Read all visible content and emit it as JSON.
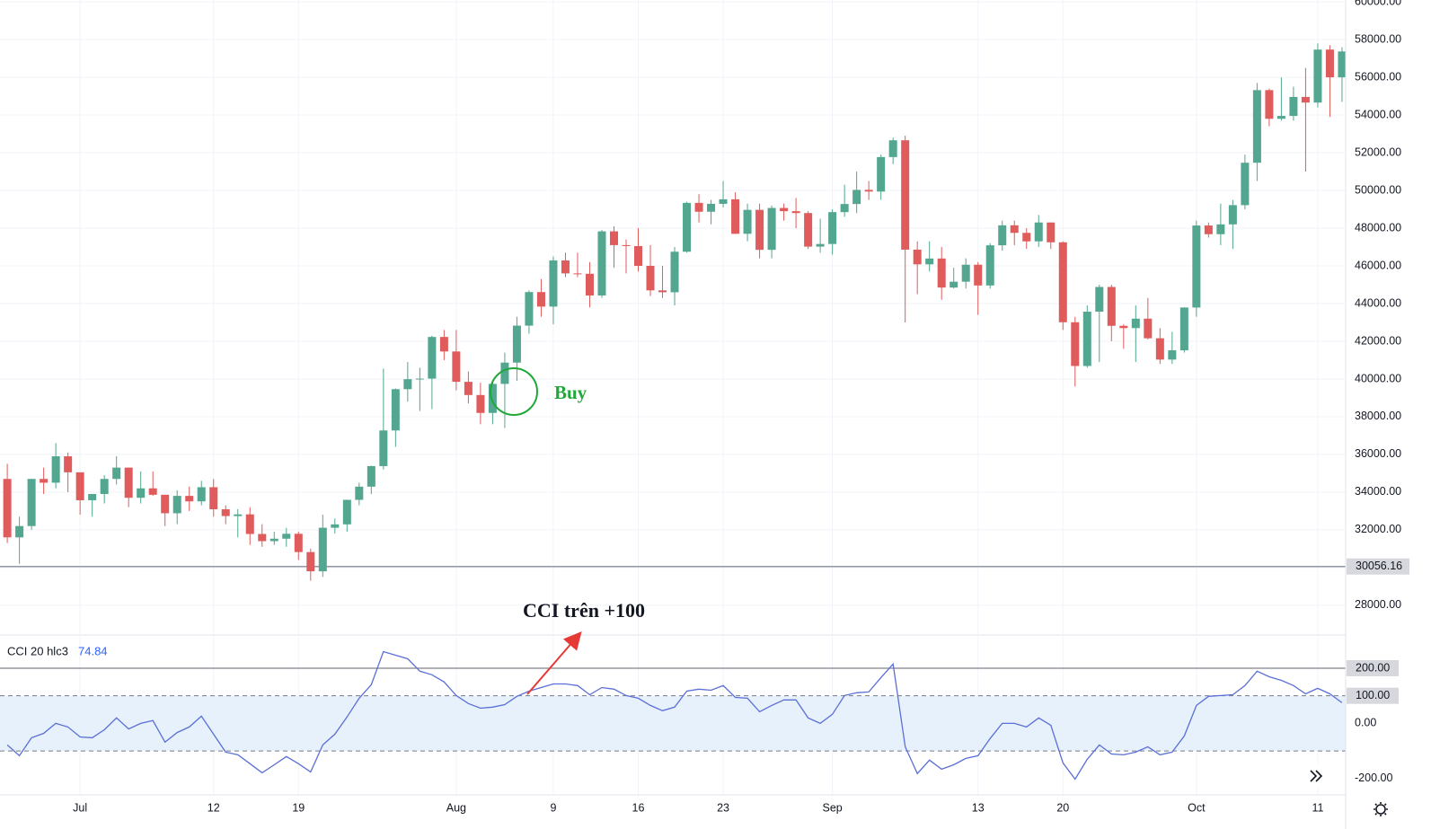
{
  "chart_data": [
    {
      "type": "candlestick",
      "x": [
        -6,
        -5,
        -4,
        -3,
        -2,
        -1,
        0,
        1,
        2,
        3,
        4,
        5,
        6,
        7,
        8,
        9,
        10,
        11,
        12,
        13,
        14,
        15,
        16,
        17,
        18,
        19,
        20,
        21,
        22,
        23,
        24,
        25,
        26,
        27,
        28,
        29,
        30,
        31,
        32,
        33,
        34,
        35,
        36,
        37,
        38,
        39,
        40,
        41,
        42,
        43,
        44,
        45,
        46,
        47,
        48,
        49,
        50,
        51,
        52,
        53,
        54,
        55,
        56,
        57,
        58,
        59,
        60,
        61,
        62,
        63,
        64,
        65,
        66,
        67,
        68,
        69,
        70,
        71,
        72,
        73,
        74,
        75,
        76,
        77,
        78,
        79,
        80,
        81,
        82,
        83,
        84,
        85,
        86,
        87,
        88,
        89,
        90,
        91,
        92,
        93,
        94,
        95,
        96,
        97,
        98,
        99,
        100,
        101,
        102,
        103,
        104
      ],
      "open": [
        34700,
        31600,
        32200,
        34700,
        34500,
        35900,
        35050,
        33570,
        33900,
        34700,
        35300,
        33700,
        34200,
        33860,
        32880,
        33800,
        33510,
        34260,
        33090,
        32730,
        32820,
        31780,
        31400,
        31530,
        31790,
        30820,
        29800,
        32110,
        32290,
        33590,
        34290,
        35380,
        37270,
        39460,
        39990,
        40020,
        42230,
        41460,
        39850,
        39150,
        38200,
        39740,
        40870,
        42830,
        44610,
        43840,
        46290,
        45600,
        45580,
        44430,
        47830,
        47100,
        47050,
        46000,
        44700,
        44600,
        46750,
        49340,
        48870,
        49290,
        49530,
        47700,
        48970,
        46850,
        49070,
        48900,
        48800,
        47020,
        47160,
        48850,
        49280,
        50030,
        49940,
        51770,
        52660,
        46860,
        46080,
        46390,
        44850,
        45160,
        46060,
        44960,
        47090,
        48150,
        47750,
        47300,
        48300,
        47250,
        43010,
        40690,
        43570,
        44880,
        42820,
        42700,
        43200,
        42160,
        41030,
        41520,
        43790,
        48140,
        47680,
        48200,
        49220,
        51470,
        55320,
        53800,
        53950,
        54960,
        54660,
        57470,
        56000
      ],
      "high": [
        35500,
        32700,
        34700,
        35300,
        36600,
        36100,
        35050,
        33900,
        34900,
        35900,
        35300,
        35100,
        35100,
        33860,
        34100,
        34300,
        34600,
        34700,
        33300,
        33100,
        33200,
        32300,
        31900,
        32100,
        31900,
        31000,
        32800,
        32600,
        33600,
        34500,
        35400,
        40550,
        39500,
        40900,
        40600,
        42300,
        42600,
        42600,
        40400,
        39800,
        39900,
        41400,
        43300,
        44700,
        45300,
        46500,
        46700,
        46700,
        46200,
        47900,
        48100,
        47400,
        48000,
        47100,
        46000,
        47000,
        49400,
        49800,
        49500,
        50500,
        49900,
        49300,
        49300,
        49200,
        49300,
        49600,
        48900,
        48500,
        49000,
        50300,
        51000,
        50500,
        51900,
        52800,
        52900,
        47300,
        47300,
        47000,
        45900,
        46400,
        46200,
        47200,
        48400,
        48400,
        48000,
        48700,
        48300,
        47300,
        43300,
        43900,
        45000,
        45000,
        42900,
        43900,
        44300,
        42700,
        42500,
        43800,
        48400,
        48300,
        49300,
        49500,
        51900,
        55700,
        55400,
        56000,
        55500,
        56500,
        57800,
        57700,
        57600
      ],
      "low": [
        31300,
        30200,
        32000,
        33900,
        34200,
        34000,
        32800,
        32700,
        33400,
        34400,
        33200,
        33400,
        33800,
        32200,
        32300,
        33000,
        33300,
        32700,
        32300,
        31600,
        31200,
        31100,
        31200,
        31100,
        30400,
        29300,
        29500,
        31800,
        31900,
        33300,
        33900,
        35200,
        36400,
        38800,
        38300,
        38400,
        41000,
        39400,
        38700,
        37600,
        37600,
        37400,
        39900,
        42400,
        43300,
        42900,
        45400,
        45400,
        43800,
        44300,
        45900,
        45600,
        45700,
        44400,
        44300,
        43900,
        46700,
        48300,
        48200,
        49100,
        47700,
        47300,
        46400,
        46400,
        48400,
        48000,
        46900,
        46700,
        46600,
        48600,
        48800,
        49500,
        49500,
        51400,
        43000,
        44500,
        45700,
        44200,
        44800,
        44800,
        43400,
        44800,
        46800,
        47100,
        46900,
        47000,
        46900,
        42600,
        39600,
        40600,
        40900,
        42000,
        41600,
        40900,
        42100,
        40800,
        40800,
        41400,
        43300,
        47500,
        47100,
        46900,
        49000,
        50500,
        53400,
        53700,
        53700,
        51000,
        54400,
        53900,
        54700
      ],
      "close": [
        31600,
        32200,
        34700,
        34500,
        35900,
        35050,
        33570,
        33900,
        34700,
        35300,
        33700,
        34200,
        33860,
        32880,
        33800,
        33510,
        34260,
        33090,
        32730,
        32820,
        31780,
        31400,
        31530,
        31790,
        30820,
        29800,
        32110,
        32290,
        33590,
        34290,
        35380,
        37270,
        39460,
        39990,
        40020,
        42230,
        41460,
        39850,
        39150,
        38200,
        39740,
        40870,
        42830,
        44610,
        43840,
        46290,
        45600,
        45580,
        44430,
        47830,
        47100,
        47050,
        46000,
        44700,
        44600,
        46750,
        49340,
        48870,
        49290,
        49530,
        47700,
        48970,
        46850,
        49070,
        48900,
        48800,
        47020,
        47160,
        48850,
        49280,
        50030,
        49940,
        51770,
        52660,
        46860,
        46080,
        46390,
        44850,
        45160,
        46060,
        44960,
        47090,
        48150,
        47750,
        47300,
        48300,
        47250,
        43010,
        40690,
        43570,
        44880,
        42820,
        42700,
        43200,
        42160,
        41030,
        41520,
        43790,
        48140,
        47680,
        48200,
        49220,
        51470,
        55320,
        53800,
        53950,
        54960,
        54660,
        57470,
        56000,
        57370
      ],
      "up_color": "#53a68f",
      "down_color": "#e05b5b",
      "xlim": [
        -6.6,
        104.3
      ],
      "xticks": [
        {
          "value": 0,
          "label": "Jul"
        },
        {
          "value": 11,
          "label": "12"
        },
        {
          "value": 18,
          "label": "19"
        },
        {
          "value": 31,
          "label": "Aug"
        },
        {
          "value": 39,
          "label": "9"
        },
        {
          "value": 46,
          "label": "16"
        },
        {
          "value": 53,
          "label": "23"
        },
        {
          "value": 62,
          "label": "Sep"
        },
        {
          "value": 74,
          "label": "13"
        },
        {
          "value": 81,
          "label": "20"
        },
        {
          "value": 92,
          "label": "Oct"
        },
        {
          "value": 102,
          "label": "11"
        }
      ],
      "ylim": [
        26470,
        60100
      ],
      "yticks": [
        {
          "value": 28000,
          "label": "28000.00"
        },
        {
          "value": 30000,
          "label": "30000.00"
        },
        {
          "value": 32000,
          "label": "32000.00"
        },
        {
          "value": 34000,
          "label": "34000.00"
        },
        {
          "value": 36000,
          "label": "36000.00"
        },
        {
          "value": 38000,
          "label": "38000.00"
        },
        {
          "value": 40000,
          "label": "40000.00"
        },
        {
          "value": 42000,
          "label": "42000.00"
        },
        {
          "value": 44000,
          "label": "44000.00"
        },
        {
          "value": 46000,
          "label": "46000.00"
        },
        {
          "value": 48000,
          "label": "48000.00"
        },
        {
          "value": 50000,
          "label": "50000.00"
        },
        {
          "value": 52000,
          "label": "52000.00"
        },
        {
          "value": 54000,
          "label": "54000.00"
        },
        {
          "value": 56000,
          "label": "56000.00"
        },
        {
          "value": 58000,
          "label": "58000.00"
        },
        {
          "value": 60000,
          "label": "60000.00"
        }
      ],
      "price_line": 30056.16,
      "grid": true,
      "annotations": [
        "Buy",
        "CCI trên +100"
      ]
    },
    {
      "type": "line",
      "title": "CCI 20 hlc3",
      "color": "#5b6fd6",
      "values": [
        -78,
        -117,
        -52,
        -36,
        0,
        -13,
        -49,
        -52,
        -23,
        20,
        -20,
        0,
        10,
        -68,
        -33,
        -13,
        26,
        -39,
        -104,
        -114,
        -146,
        -179,
        -150,
        -120,
        -146,
        -176,
        -78,
        -39,
        23,
        91,
        140,
        260,
        247,
        234,
        189,
        176,
        150,
        101,
        72,
        55,
        59,
        68,
        98,
        117,
        130,
        143,
        143,
        137,
        104,
        130,
        124,
        101,
        91,
        65,
        46,
        59,
        117,
        124,
        120,
        137,
        94,
        91,
        42,
        65,
        85,
        85,
        20,
        0,
        33,
        101,
        111,
        114,
        166,
        215,
        -85,
        -182,
        -133,
        -166,
        -150,
        -127,
        -117,
        -55,
        0,
        0,
        -13,
        20,
        -7,
        -143,
        -202,
        -130,
        -78,
        -111,
        -114,
        -104,
        -85,
        -114,
        -104,
        -46,
        65,
        98,
        101,
        104,
        137,
        189,
        169,
        156,
        137,
        107,
        127,
        107,
        74.84
      ],
      "ylim": [
        -259,
        317
      ],
      "yticks": [
        {
          "value": -200,
          "label": "-200.00"
        },
        {
          "value": 0,
          "label": "0.00"
        },
        {
          "value": 100,
          "label": "100.00"
        },
        {
          "value": 200,
          "label": "200.00"
        }
      ],
      "band": [
        -100,
        100
      ],
      "band_color": "#e6f1fc",
      "hlines": [
        200
      ]
    }
  ]
}
